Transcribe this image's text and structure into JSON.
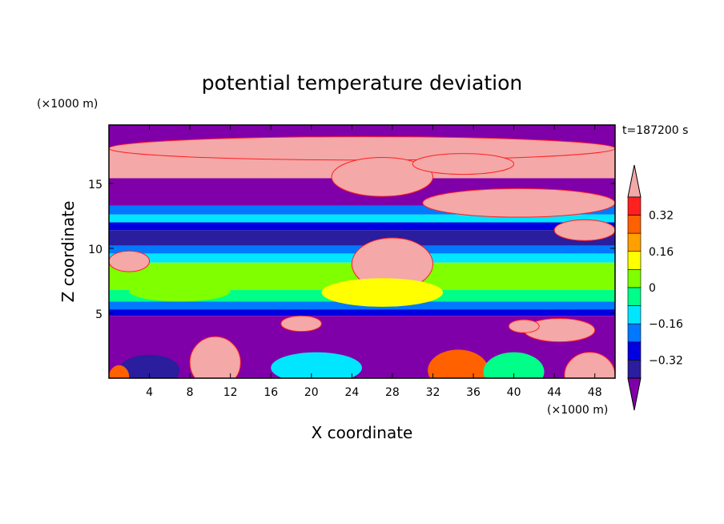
{
  "chart_data": {
    "type": "heatmap",
    "title": "potential temperature deviation",
    "xlabel": "X coordinate",
    "ylabel": "Z coordinate",
    "x_unit": "(×1000 m)",
    "y_unit": "(×1000 m)",
    "time_label": "t=187200 s",
    "xlim": [
      0,
      50
    ],
    "ylim": [
      0,
      19.5
    ],
    "x_ticks": [
      4,
      8,
      12,
      16,
      20,
      24,
      28,
      32,
      36,
      40,
      44,
      48
    ],
    "y_ticks": [
      5,
      10,
      15
    ],
    "colorbar": {
      "levels": [
        -0.4,
        -0.32,
        -0.24,
        -0.16,
        -0.08,
        0,
        0.08,
        0.16,
        0.24,
        0.32,
        0.4
      ],
      "tick_labels": [
        "0.32",
        "0.16",
        "0",
        "−0.16",
        "−0.32"
      ],
      "tick_values": [
        0.32,
        0.16,
        0,
        -0.16,
        -0.32
      ],
      "colors": [
        "#7f00a8",
        "#2a1d9e",
        "#0000e0",
        "#0078ff",
        "#00e6ff",
        "#00ff88",
        "#7fff00",
        "#ffff00",
        "#ffa000",
        "#ff6000",
        "#ff2020",
        "#f4a8a8"
      ],
      "extend": "both"
    },
    "bands": [
      {
        "z": [
          17.6,
          19.5
        ],
        "value": -0.5
      },
      {
        "z": [
          15.4,
          17.6
        ],
        "value": 0.5
      },
      {
        "z": [
          13.3,
          15.4
        ],
        "value": -0.5
      },
      {
        "z": [
          12.6,
          13.3
        ],
        "value": -0.2
      },
      {
        "z": [
          12.0,
          12.6
        ],
        "value": -0.1
      },
      {
        "z": [
          11.4,
          12.0
        ],
        "value": -0.25
      },
      {
        "z": [
          10.2,
          11.4
        ],
        "value": -0.36
      },
      {
        "z": [
          9.6,
          10.2
        ],
        "value": -0.2
      },
      {
        "z": [
          8.9,
          9.6
        ],
        "value": -0.12
      },
      {
        "z": [
          6.8,
          8.9
        ],
        "value": 0.03
      },
      {
        "z": [
          5.9,
          6.8
        ],
        "value": -0.08
      },
      {
        "z": [
          5.3,
          5.9
        ],
        "value": -0.17
      },
      {
        "z": [
          4.8,
          5.3
        ],
        "value": -0.3
      },
      {
        "z": [
          0,
          4.8
        ],
        "value": -0.5
      }
    ],
    "blobs": [
      {
        "x": 0,
        "z": 18.6,
        "w": 50,
        "h": 1.8,
        "value": 0.5
      },
      {
        "x": 22,
        "z": 17.0,
        "w": 10,
        "h": 3.0,
        "value": 0.5
      },
      {
        "x": 31,
        "z": 14.6,
        "w": 19,
        "h": 2.2,
        "value": 0.5
      },
      {
        "x": 24,
        "z": 10.8,
        "w": 8,
        "h": 4.0,
        "value": 0.5
      },
      {
        "x": 5,
        "z": 14.8,
        "w": 9,
        "h": 1.2,
        "value": -0.5
      },
      {
        "x": 30,
        "z": 17.3,
        "w": 10,
        "h": 1.6,
        "value": 0.5
      },
      {
        "x": 0,
        "z": 9.8,
        "w": 4,
        "h": 1.6,
        "value": 0.5
      },
      {
        "x": 21,
        "z": 7.7,
        "w": 12,
        "h": 2.2,
        "value": 0.08
      },
      {
        "x": 2,
        "z": 7.5,
        "w": 10,
        "h": 1.6,
        "value": 0.05
      },
      {
        "x": 8,
        "z": 3.2,
        "w": 5,
        "h": 4.0,
        "value": 0.5
      },
      {
        "x": 31.5,
        "z": 2.2,
        "w": 6,
        "h": 3.2,
        "value": 0.3
      },
      {
        "x": 45,
        "z": 2.0,
        "w": 5,
        "h": 3.6,
        "value": 0.4
      },
      {
        "x": 16,
        "z": 2.0,
        "w": 9,
        "h": 2.4,
        "value": -0.15
      },
      {
        "x": 1,
        "z": 1.8,
        "w": 6,
        "h": 2.4,
        "value": -0.36
      },
      {
        "x": 37,
        "z": 2.0,
        "w": 6,
        "h": 3.0,
        "value": -0.02
      },
      {
        "x": 0,
        "z": 1.0,
        "w": 2,
        "h": 1.8,
        "value": 0.3
      },
      {
        "x": 41,
        "z": 4.6,
        "w": 7,
        "h": 1.8,
        "value": 0.5
      },
      {
        "x": 17,
        "z": 4.8,
        "w": 4,
        "h": 1.2,
        "value": 0.5
      },
      {
        "x": 39.5,
        "z": 4.5,
        "w": 3,
        "h": 1.0,
        "value": 0.5
      },
      {
        "x": 44,
        "z": 12.2,
        "w": 6,
        "h": 1.6,
        "value": 0.5
      }
    ]
  }
}
